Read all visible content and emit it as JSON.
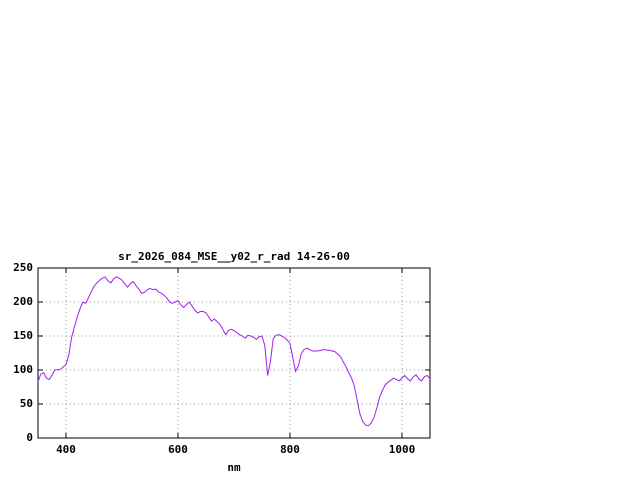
{
  "chart_data": {
    "type": "line",
    "title": "sr_2026_084_MSE__y02_r_rad 14-26-00",
    "xlabel": "nm",
    "ylabel": "",
    "xlim": [
      350,
      1050
    ],
    "ylim": [
      0,
      250
    ],
    "xticks": [
      400,
      600,
      800,
      1000
    ],
    "yticks": [
      0,
      50,
      100,
      150,
      200,
      250
    ],
    "grid": true,
    "legend": "none",
    "colors": {
      "line": "#a020f0",
      "grid": "#9a9a9a",
      "border": "#000000",
      "background": "#ffffff"
    },
    "series": [
      {
        "name": "sr_2026_084_MSE__y02_r_rad",
        "x": [
          350,
          355,
          360,
          365,
          370,
          375,
          380,
          390,
          400,
          405,
          410,
          415,
          420,
          425,
          430,
          435,
          440,
          445,
          450,
          455,
          460,
          465,
          470,
          475,
          480,
          485,
          490,
          495,
          500,
          505,
          510,
          515,
          520,
          525,
          530,
          535,
          540,
          545,
          550,
          555,
          560,
          565,
          570,
          575,
          580,
          585,
          590,
          595,
          600,
          605,
          610,
          615,
          620,
          625,
          630,
          635,
          640,
          645,
          650,
          655,
          660,
          665,
          670,
          675,
          680,
          685,
          690,
          695,
          700,
          705,
          710,
          715,
          720,
          725,
          730,
          735,
          740,
          745,
          750,
          755,
          760,
          765,
          770,
          775,
          780,
          785,
          790,
          795,
          800,
          805,
          810,
          815,
          820,
          825,
          830,
          835,
          840,
          850,
          860,
          870,
          880,
          890,
          895,
          900,
          905,
          910,
          915,
          920,
          925,
          930,
          935,
          940,
          945,
          950,
          955,
          960,
          965,
          970,
          975,
          980,
          985,
          990,
          995,
          1000,
          1005,
          1010,
          1015,
          1020,
          1025,
          1030,
          1035,
          1040,
          1045,
          1050
        ],
        "y": [
          83,
          94,
          96,
          88,
          86,
          92,
          100,
          101,
          108,
          122,
          148,
          163,
          178,
          190,
          200,
          198,
          206,
          215,
          223,
          228,
          232,
          235,
          237,
          231,
          228,
          234,
          237,
          235,
          232,
          227,
          222,
          227,
          230,
          224,
          219,
          213,
          214,
          218,
          220,
          218,
          219,
          215,
          213,
          210,
          206,
          200,
          198,
          200,
          202,
          196,
          192,
          196,
          200,
          194,
          188,
          184,
          186,
          186,
          184,
          178,
          172,
          175,
          171,
          167,
          160,
          152,
          158,
          160,
          158,
          155,
          152,
          150,
          147,
          151,
          150,
          148,
          145,
          149,
          150,
          136,
          92,
          112,
          146,
          151,
          152,
          150,
          148,
          144,
          139,
          118,
          98,
          106,
          124,
          130,
          132,
          130,
          128,
          128,
          130,
          129,
          127,
          120,
          112,
          105,
          96,
          88,
          76,
          55,
          35,
          24,
          19,
          18,
          22,
          30,
          44,
          60,
          70,
          78,
          82,
          85,
          88,
          86,
          84,
          88,
          92,
          87,
          84,
          90,
          93,
          87,
          84,
          90,
          92,
          87
        ]
      }
    ]
  }
}
